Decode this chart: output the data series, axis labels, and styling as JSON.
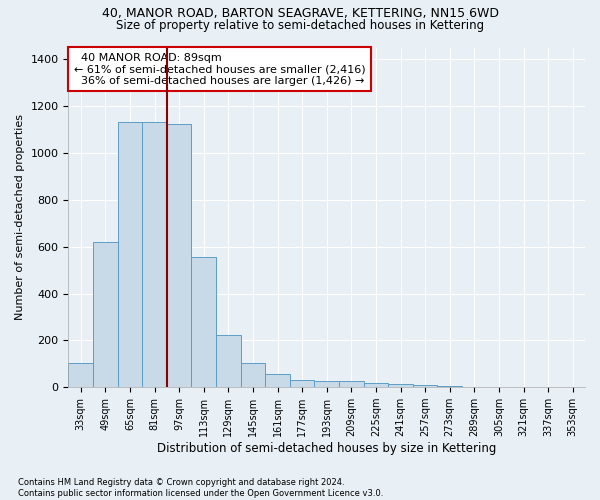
{
  "title1": "40, MANOR ROAD, BARTON SEAGRAVE, KETTERING, NN15 6WD",
  "title2": "Size of property relative to semi-detached houses in Kettering",
  "xlabel": "Distribution of semi-detached houses by size in Kettering",
  "ylabel": "Number of semi-detached properties",
  "footnote": "Contains HM Land Registry data © Crown copyright and database right 2024.\nContains public sector information licensed under the Open Government Licence v3.0.",
  "bin_labels": [
    "33sqm",
    "49sqm",
    "65sqm",
    "81sqm",
    "97sqm",
    "113sqm",
    "129sqm",
    "145sqm",
    "161sqm",
    "177sqm",
    "193sqm",
    "209sqm",
    "225sqm",
    "241sqm",
    "257sqm",
    "273sqm",
    "289sqm",
    "305sqm",
    "321sqm",
    "337sqm",
    "353sqm"
  ],
  "bar_values": [
    105,
    620,
    1130,
    1130,
    1125,
    555,
    225,
    105,
    55,
    30,
    25,
    28,
    20,
    12,
    8,
    5,
    3,
    2,
    1,
    1,
    0
  ],
  "bar_color": "#c8d9e8",
  "bar_edge_color": "#5d9dc7",
  "property_label": "40 MANOR ROAD: 89sqm",
  "pct_smaller": 61,
  "pct_smaller_n": 2416,
  "pct_larger": 36,
  "pct_larger_n": 1426,
  "vline_color": "#8b0000",
  "vline_bin_index": 3.5,
  "annotation_box_edge": "#cc0000",
  "ylim": [
    0,
    1450
  ],
  "yticks": [
    0,
    200,
    400,
    600,
    800,
    1000,
    1200,
    1400
  ],
  "bg_color": "#e8eff5",
  "grid_color": "#ffffff",
  "title1_fontsize": 9,
  "title2_fontsize": 8.5
}
